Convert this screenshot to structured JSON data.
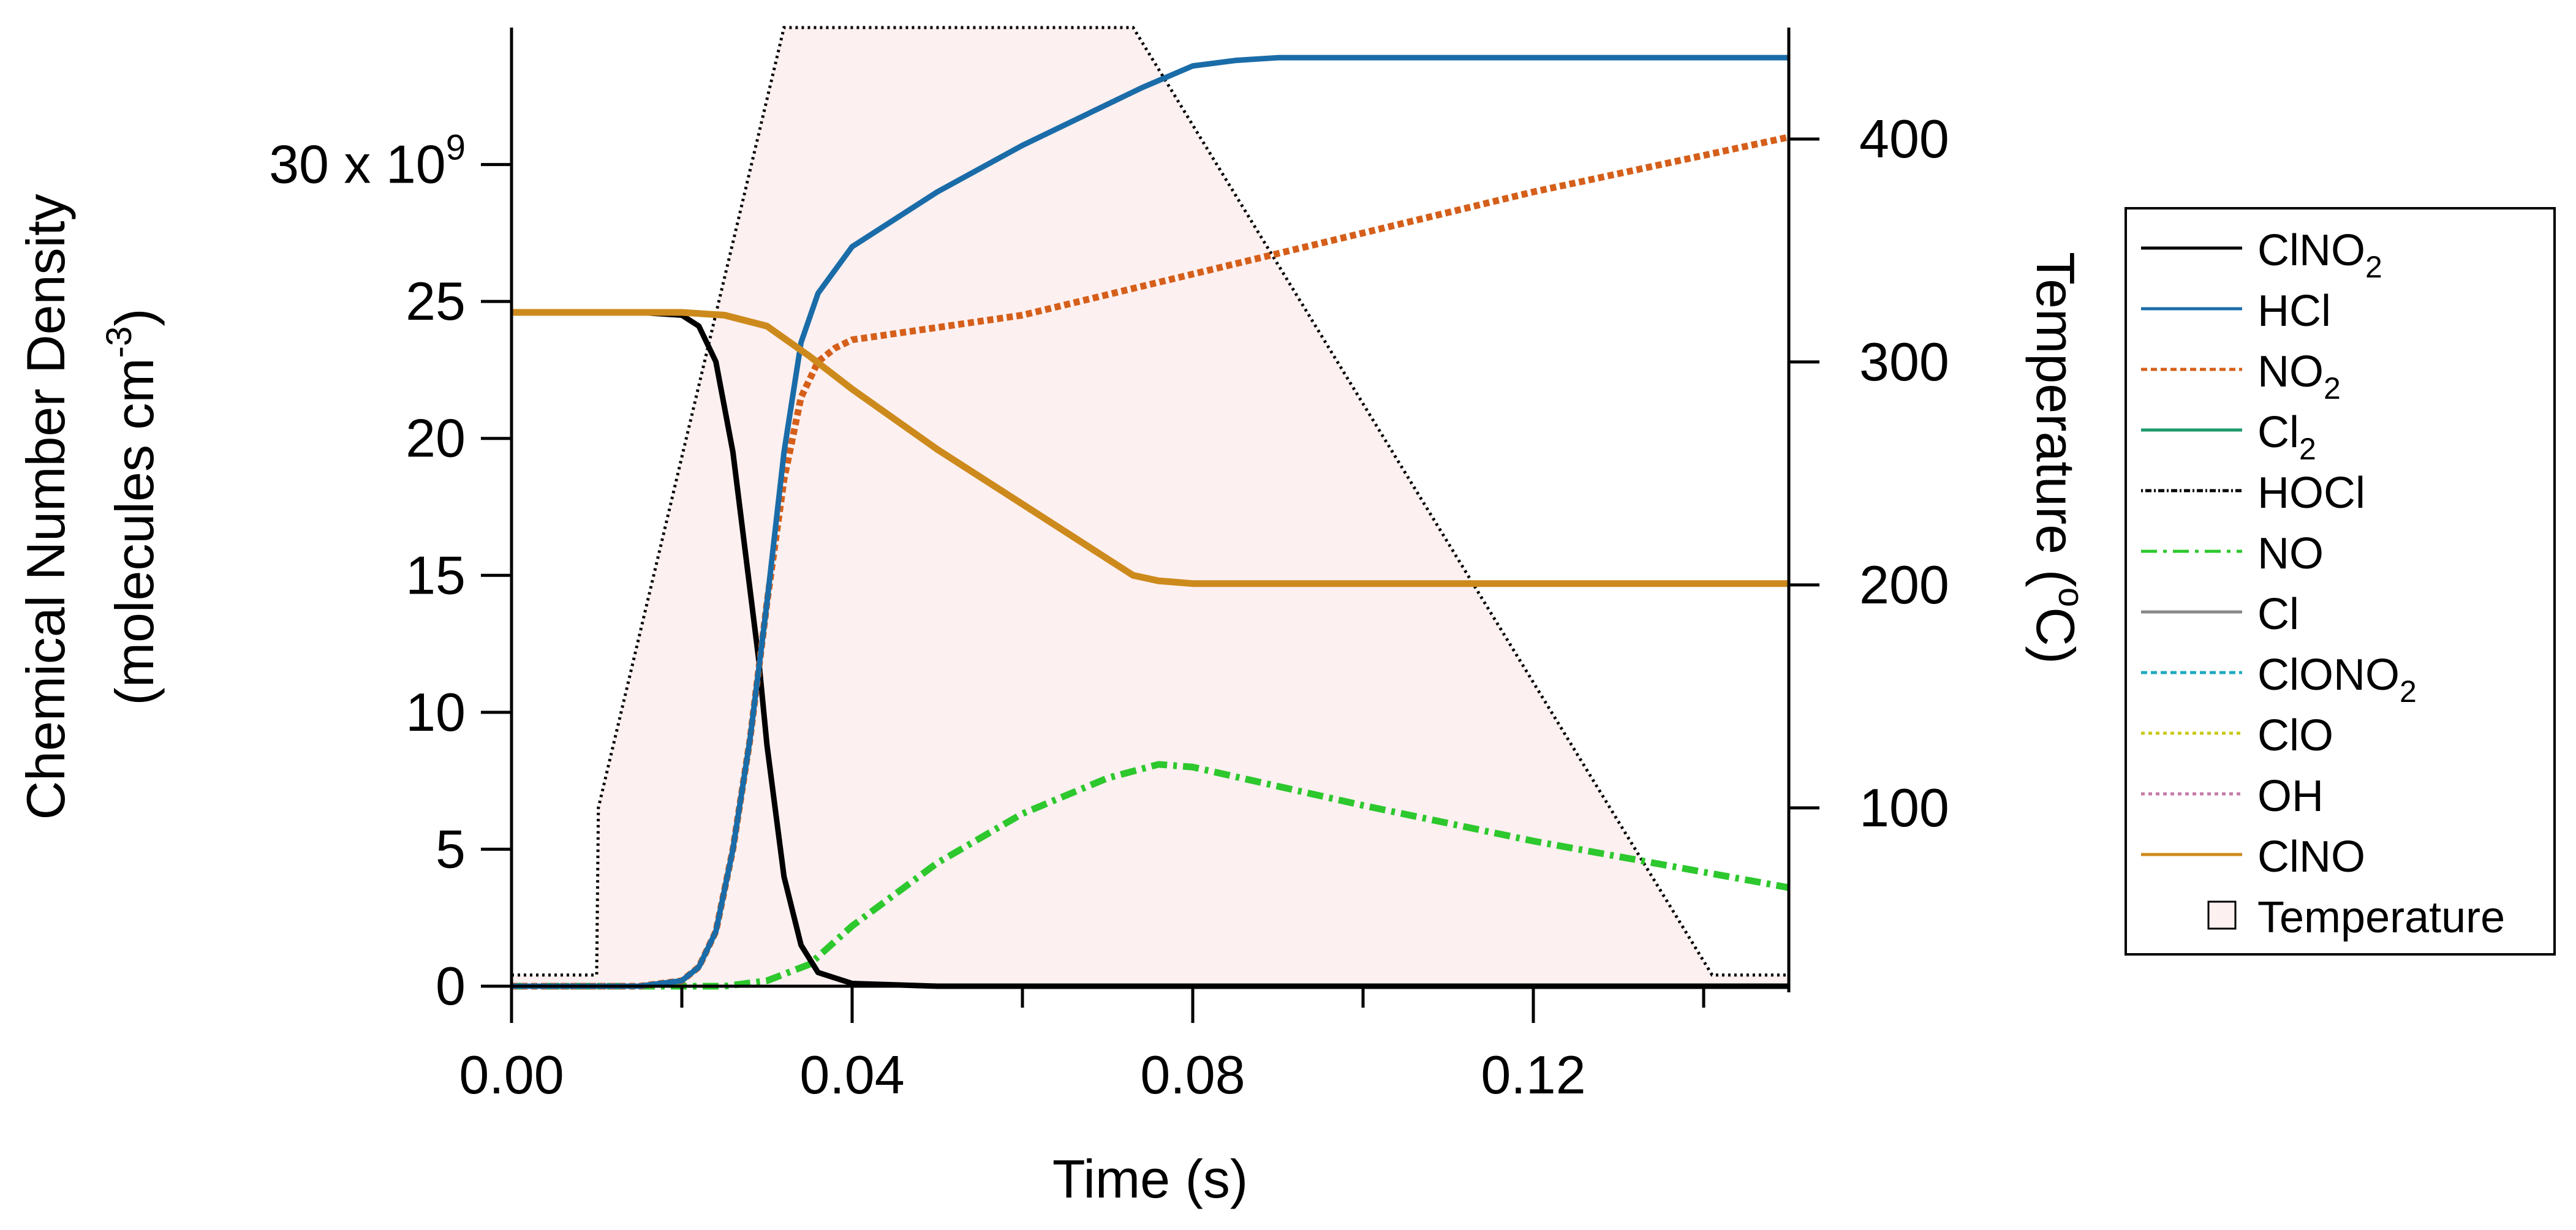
{
  "chart_data": {
    "type": "line",
    "xlabel": "Time (s)",
    "ylabel_line1": "Chemical Number Density",
    "ylabel_unit_prefix": "(molecules cm",
    "ylabel_unit_exp": "-3",
    "ylabel_unit_suffix": ")",
    "y2label_prefix": "Temperature (",
    "y2label_exp": "o",
    "y2label_suffix": "C)",
    "xlim": [
      0,
      0.15
    ],
    "ylim": [
      0,
      35
    ],
    "y2lim": [
      20,
      450
    ],
    "x_ticks": [
      0.0,
      0.04,
      0.08,
      0.12
    ],
    "x_tick_labels": [
      "0.00",
      "0.04",
      "0.08",
      "0.12"
    ],
    "x_minor_ticks": [
      0.02,
      0.06,
      0.1,
      0.14
    ],
    "y_ticks": [
      0,
      5,
      10,
      15,
      20,
      25,
      30
    ],
    "y_tick_labels": [
      "0",
      "5",
      "10",
      "15",
      "20",
      "25",
      "30 x 10"
    ],
    "y_tick_exp": "9",
    "y2_ticks": [
      100,
      200,
      300,
      400
    ],
    "y2_tick_labels": [
      "100",
      "200",
      "300",
      "400"
    ],
    "grid": false,
    "legend_position": "right",
    "temperature": {
      "name": "Temperature",
      "fill": "#fdf0f0",
      "x": [
        0.0,
        0.01,
        0.0102,
        0.032,
        0.073,
        0.141,
        0.15
      ],
      "y": [
        25,
        25,
        100,
        450,
        450,
        25,
        25
      ]
    },
    "series": [
      {
        "name": "ClNO",
        "sub": "2",
        "color": "#000000",
        "dash": "solid",
        "width": 9,
        "x": [
          0,
          0.015,
          0.02,
          0.022,
          0.024,
          0.026,
          0.028,
          0.029,
          0.03,
          0.032,
          0.034,
          0.036,
          0.04,
          0.045,
          0.05,
          0.15
        ],
        "y": [
          24.6,
          24.6,
          24.5,
          24.1,
          22.8,
          19.5,
          14.5,
          12,
          8.8,
          4,
          1.5,
          0.5,
          0.1,
          0.05,
          0,
          0
        ]
      },
      {
        "name": "HCl",
        "sub": "",
        "color": "#1a6ca8",
        "dash": "solid",
        "width": 9,
        "x": [
          0,
          0.015,
          0.02,
          0.022,
          0.024,
          0.026,
          0.028,
          0.03,
          0.032,
          0.034,
          0.036,
          0.04,
          0.05,
          0.06,
          0.07,
          0.074,
          0.08,
          0.085,
          0.09,
          0.15
        ],
        "y": [
          0,
          0,
          0.2,
          0.7,
          2,
          5,
          9,
          14,
          19.5,
          23.5,
          25.3,
          27,
          29,
          30.7,
          32.2,
          32.8,
          33.6,
          33.8,
          33.9,
          33.9
        ]
      },
      {
        "name": "NO",
        "sub": "2",
        "color": "#d55f1a",
        "dash": "10,6",
        "width": 11,
        "x": [
          0,
          0.015,
          0.02,
          0.022,
          0.024,
          0.026,
          0.028,
          0.03,
          0.032,
          0.034,
          0.036,
          0.038,
          0.04,
          0.06,
          0.08,
          0.1,
          0.12,
          0.15
        ],
        "y": [
          0,
          0,
          0.2,
          0.7,
          2,
          5,
          9,
          14,
          18.5,
          21.5,
          22.8,
          23.3,
          23.6,
          24.5,
          26,
          27.5,
          29,
          31
        ]
      },
      {
        "name": "Cl",
        "sub": "2",
        "color": "#1a9a6b",
        "dash": "solid",
        "width": 4,
        "x": [
          0,
          0.15
        ],
        "y": [
          0,
          0
        ]
      },
      {
        "name": "HOCl",
        "sub": "",
        "color": "#000000",
        "dash": "3,4,10,4",
        "width": 4,
        "x": [
          0,
          0.15
        ],
        "y": [
          0,
          0
        ]
      },
      {
        "name": "NO",
        "sub": "",
        "color": "#2dc82d",
        "dash": "26,10,6,10",
        "width": 11,
        "x": [
          0,
          0.025,
          0.03,
          0.035,
          0.04,
          0.05,
          0.06,
          0.07,
          0.076,
          0.08,
          0.09,
          0.1,
          0.12,
          0.15
        ],
        "y": [
          0,
          0,
          0.2,
          0.8,
          2.2,
          4.5,
          6.3,
          7.6,
          8.1,
          8,
          7.3,
          6.6,
          5.3,
          3.6
        ]
      },
      {
        "name": "Cl",
        "sub": "",
        "color": "#888888",
        "dash": "solid",
        "width": 4,
        "x": [
          0,
          0.15
        ],
        "y": [
          0,
          0
        ]
      },
      {
        "name": "ClONO",
        "sub": "2",
        "color": "#1faabf",
        "dash": "10,6",
        "width": 4,
        "x": [
          0,
          0.15
        ],
        "y": [
          0,
          0
        ]
      },
      {
        "name": "ClO",
        "sub": "",
        "color": "#c9c91a",
        "dash": "6,6",
        "width": 4,
        "x": [
          0,
          0.15
        ],
        "y": [
          0,
          0
        ]
      },
      {
        "name": "OH",
        "sub": "",
        "color": "#c77aa8",
        "dash": "6,6",
        "width": 4,
        "x": [
          0,
          0.15
        ],
        "y": [
          0,
          0
        ]
      },
      {
        "name": "ClNO",
        "sub": "",
        "color": "#cd8a1c",
        "dash": "solid",
        "width": 11,
        "x": [
          0,
          0.015,
          0.02,
          0.025,
          0.03,
          0.035,
          0.04,
          0.05,
          0.06,
          0.07,
          0.073,
          0.076,
          0.08,
          0.09,
          0.15
        ],
        "y": [
          24.6,
          24.6,
          24.6,
          24.5,
          24.1,
          23,
          21.8,
          19.6,
          17.6,
          15.6,
          15,
          14.8,
          14.7,
          14.7,
          14.7
        ]
      }
    ]
  }
}
